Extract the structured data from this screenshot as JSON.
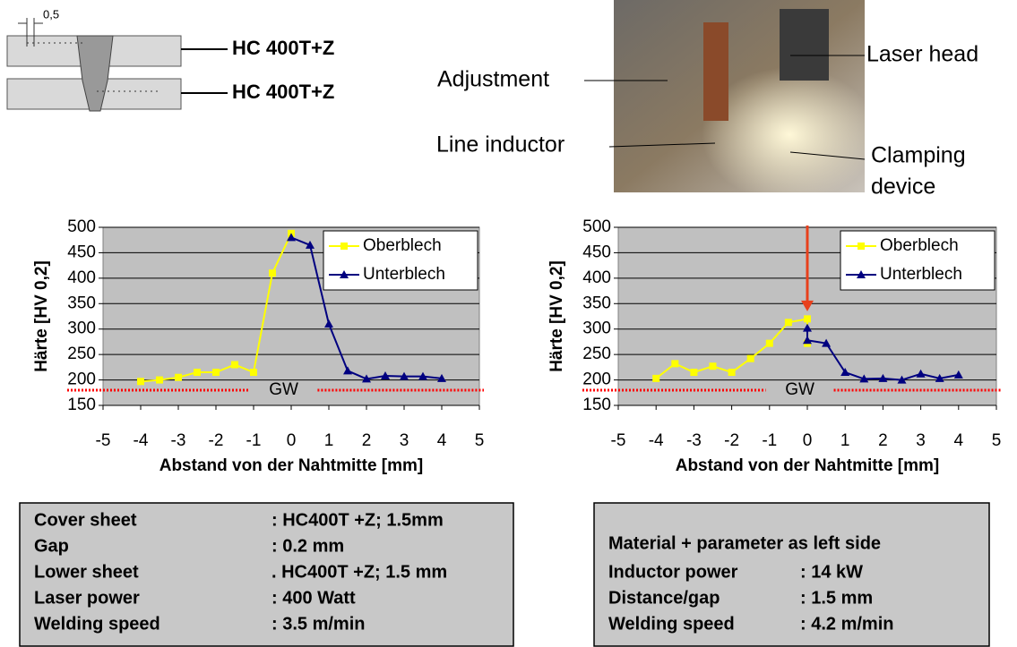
{
  "diagram": {
    "dimension": "0,5",
    "top_sheet": "HC 400T+Z",
    "bottom_sheet": "HC 400T+Z"
  },
  "photo": {
    "adjustment": "Adjustment",
    "laser_head": "Laser head",
    "line_inductor": "Line inductor",
    "clamping_device": [
      "Clamping",
      "device"
    ]
  },
  "chart_data": [
    {
      "type": "line",
      "xlabel": "Abstand von der Nahtmitte [mm]",
      "ylabel": "Härte [HV 0,2]",
      "xlim": [
        -5,
        5
      ],
      "xticks": [
        -5,
        -4,
        -3,
        -2,
        -1,
        0,
        1,
        2,
        3,
        4,
        5
      ],
      "ylim": [
        150,
        500
      ],
      "yticks": [
        150,
        200,
        250,
        300,
        350,
        400,
        450,
        500
      ],
      "grid": true,
      "legend": "upper right",
      "background": "#c0c0c0",
      "series": [
        {
          "name": "Oberblech",
          "color": "#ffff00",
          "marker": "square",
          "x": [
            -4,
            -3.5,
            -3,
            -2.5,
            -2,
            -1.5,
            -1,
            -0.5,
            0
          ],
          "values": [
            197,
            200,
            205,
            215,
            215,
            230,
            215,
            410,
            488
          ]
        },
        {
          "name": "Unterblech",
          "color": "#000080",
          "marker": "triangle",
          "x": [
            0,
            0.5,
            1,
            1.5,
            2,
            2.5,
            3,
            3.5,
            4
          ],
          "values": [
            480,
            465,
            310,
            218,
            202,
            208,
            207,
            207,
            203
          ]
        }
      ],
      "reference_line": {
        "label": "GW",
        "value": 180,
        "color": "#ff0000"
      }
    },
    {
      "type": "line",
      "xlabel": "Abstand von der Nahtmitte [mm]",
      "ylabel": "Härte [HV 0,2]",
      "xlim": [
        -5,
        5
      ],
      "xticks": [
        -5,
        -4,
        -3,
        -2,
        -1,
        0,
        1,
        2,
        3,
        4,
        5
      ],
      "ylim": [
        150,
        500
      ],
      "yticks": [
        150,
        200,
        250,
        300,
        350,
        400,
        450,
        500
      ],
      "grid": true,
      "legend": "upper right",
      "background": "#c0c0c0",
      "series": [
        {
          "name": "Oberblech",
          "color": "#ffff00",
          "marker": "square",
          "x": [
            -4,
            -3.5,
            -3,
            -2.5,
            -2,
            -1.5,
            -1,
            -0.5,
            0,
            0
          ],
          "values": [
            203,
            232,
            215,
            227,
            215,
            242,
            272,
            313,
            320,
            272
          ]
        },
        {
          "name": "Unterblech",
          "color": "#000080",
          "marker": "triangle",
          "x": [
            0,
            0,
            0.5,
            1,
            1.5,
            2,
            2.5,
            3,
            3.5,
            4
          ],
          "values": [
            302,
            278,
            272,
            215,
            202,
            203,
            200,
            212,
            203,
            210
          ]
        }
      ],
      "reference_line": {
        "label": "GW",
        "value": 180,
        "color": "#ff0000"
      },
      "arrow": {
        "x": 0,
        "y": 335,
        "color": "#e8401c"
      }
    }
  ],
  "left_box": {
    "rows": [
      [
        "Cover sheet",
        ": HC400T +Z; 1.5mm"
      ],
      [
        "Gap",
        ": 0.2 mm"
      ],
      [
        "Lower sheet",
        ". HC400T +Z; 1.5 mm"
      ],
      [
        "Laser power",
        ": 400 Watt"
      ],
      [
        "Welding speed",
        ": 3.5 m/min"
      ]
    ]
  },
  "right_box": {
    "heading": "Material + parameter as left side",
    "rows": [
      [
        "Inductor power",
        ": 14 kW"
      ],
      [
        "Distance/gap",
        ": 1.5 mm"
      ],
      [
        "Welding speed",
        ": 4.2 m/min"
      ]
    ]
  }
}
